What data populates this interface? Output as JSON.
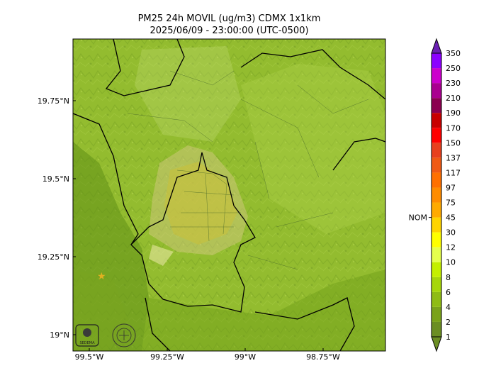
{
  "title": {
    "line1": "PM25 24h MOVIL (ug/m3) CDMX 1x1km",
    "line2": "2025/06/09 - 23:00:00 (UTC-0500)"
  },
  "map": {
    "x_ticks": [
      "99.5°W",
      "99.25°W",
      "99°W",
      "98.75°W"
    ],
    "y_ticks": [
      "19.75°N",
      "19.5°N",
      "19.25°N",
      "19°N"
    ],
    "logos": [
      "SEDEMA logo",
      "Ciudad de México seal"
    ]
  },
  "colorbar": {
    "nom_label": "NOM",
    "levels": [
      {
        "label": "1",
        "color": "#6b8e23"
      },
      {
        "label": "2",
        "color": "#7aa21a"
      },
      {
        "label": "4",
        "color": "#8fbc14"
      },
      {
        "label": "6",
        "color": "#a6d60a"
      },
      {
        "label": "8",
        "color": "#c4f000"
      },
      {
        "label": "10",
        "color": "#e6ff4d"
      },
      {
        "label": "12",
        "color": "#ffff00"
      },
      {
        "label": "30",
        "color": "#ffd400"
      },
      {
        "label": "45",
        "color": "#ffaa00"
      },
      {
        "label": "75",
        "color": "#ff8c00"
      },
      {
        "label": "97",
        "color": "#ff7000"
      },
      {
        "label": "117",
        "color": "#f05a14"
      },
      {
        "label": "137",
        "color": "#e8401e"
      },
      {
        "label": "150",
        "color": "#ff0000"
      },
      {
        "label": "170",
        "color": "#c80000"
      },
      {
        "label": "190",
        "color": "#8b0050"
      },
      {
        "label": "210",
        "color": "#aa0090"
      },
      {
        "label": "230",
        "color": "#cc00cc"
      },
      {
        "label": "250",
        "color": "#8c00ff"
      },
      {
        "label": "350",
        "color": "#6a1fb3"
      }
    ]
  }
}
